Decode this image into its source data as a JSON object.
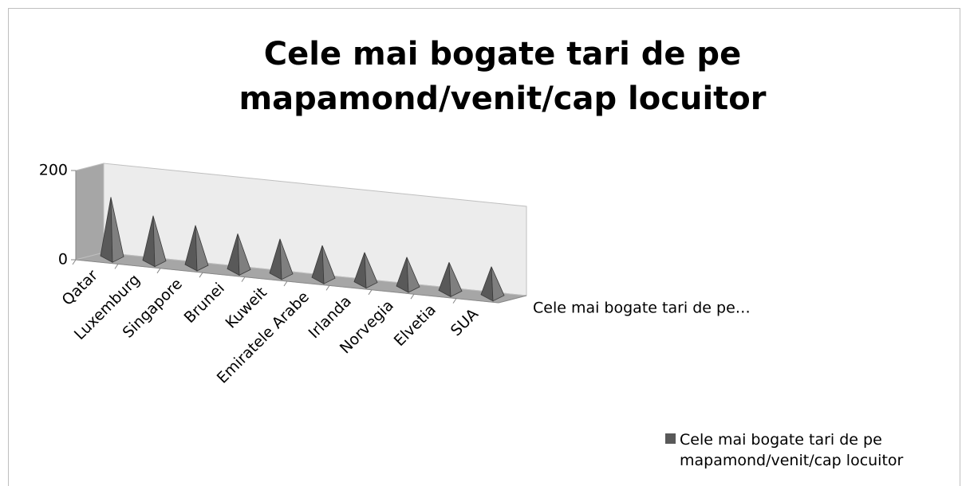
{
  "chart_data": {
    "type": "pyramid3d",
    "title": "Cele mai bogate tari de pe mapamond/venit/cap locuitor",
    "categories": [
      "Qatar",
      "Luxemburg",
      "Singapore",
      "Brunei",
      "Kuweit",
      "Emiratele Arabe",
      "Irlanda",
      "Norvegia",
      "Elvetia",
      "SUA"
    ],
    "series": [
      {
        "name": "Cele mai bogate tari de pe mapamond/venit/cap locuitor",
        "color": "#595959",
        "values": [
          137,
          105,
          93,
          84,
          82,
          77,
          71,
          70,
          68,
          68
        ]
      }
    ],
    "depth_axis_label": "Cele mai bogate tari de pe…",
    "ylim": [
      0,
      200
    ],
    "yticks": [
      0,
      200
    ],
    "legend": "bottom-right"
  }
}
